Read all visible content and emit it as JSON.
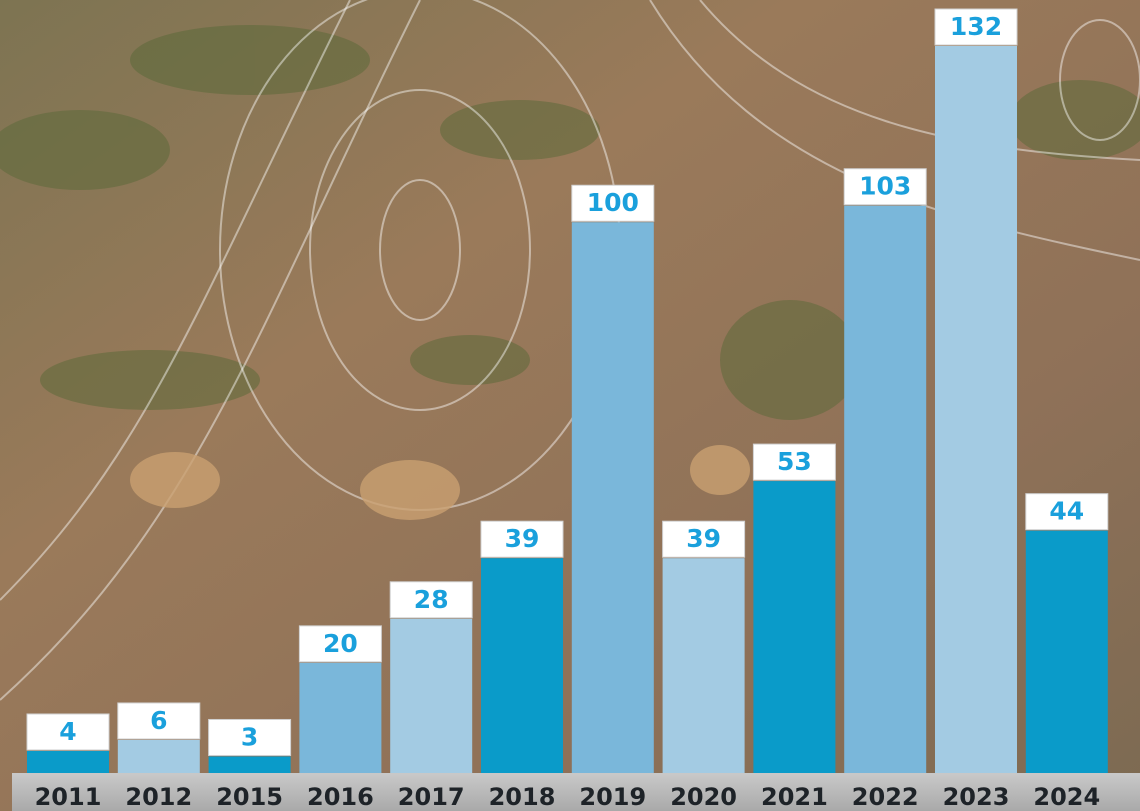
{
  "chart_data": {
    "type": "bar",
    "categories": [
      "2011",
      "2012",
      "2015",
      "2016",
      "2017",
      "2018",
      "2019",
      "2020",
      "2021",
      "2022",
      "2023",
      "2024"
    ],
    "values": [
      4,
      6,
      3,
      20,
      28,
      39,
      100,
      39,
      53,
      103,
      132,
      44
    ],
    "colors": [
      "#0a9bc9",
      "#a3cbe3",
      "#0a9bc9",
      "#7ab7da",
      "#a3cbe3",
      "#0a9bc9",
      "#7ab7da",
      "#a3cbe3",
      "#0a9bc9",
      "#7ab7da",
      "#a3cbe3",
      "#0a9bc9"
    ]
  }
}
